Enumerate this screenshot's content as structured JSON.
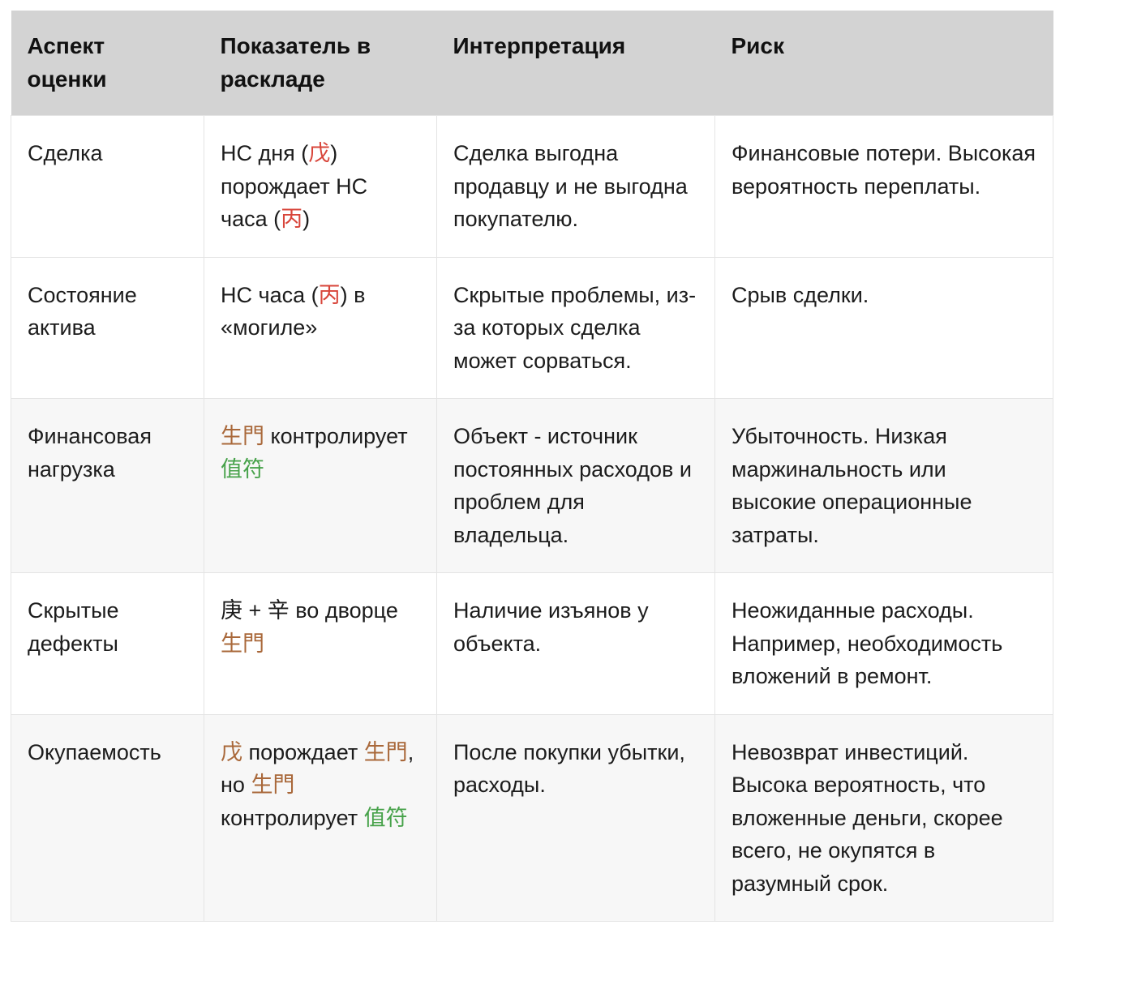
{
  "colors": {
    "red": "#d8453a",
    "brown": "#a9683a",
    "green": "#47a24a"
  },
  "table": {
    "headers": [
      "Аспект оценки",
      "Показатель в раскладе",
      "Интерпретация",
      "Риск"
    ],
    "rows": [
      {
        "aspect": "Сделка",
        "indicator": [
          {
            "t": "НС дня ("
          },
          {
            "t": "戊",
            "c": "red"
          },
          {
            "t": ") порождает НС часа ("
          },
          {
            "t": "丙",
            "c": "red"
          },
          {
            "t": ")"
          }
        ],
        "interpretation": "Сделка выгодна продавцу и не выгодна покупателю.",
        "risk": "Финансовые потери. Высокая вероятность переплаты."
      },
      {
        "aspect": "Состояние актива",
        "indicator": [
          {
            "t": "НС часа ("
          },
          {
            "t": "丙",
            "c": "red"
          },
          {
            "t": ") в «могиле»"
          }
        ],
        "interpretation": "Скрытые проблемы, из-за которых сделка может сорваться.",
        "risk": "Срыв сделки."
      },
      {
        "aspect": "Финансовая нагрузка",
        "indicator": [
          {
            "t": "生門",
            "c": "brown"
          },
          {
            "t": " контролирует "
          },
          {
            "t": "值符",
            "c": "green"
          }
        ],
        "interpretation": "Объект - источник постоянных расходов и проблем для владельца.",
        "risk": "Убыточность. Низкая маржинальность или высокие операционные затраты."
      },
      {
        "aspect": "Скрытые дефекты",
        "indicator": [
          {
            "t": "庚 + 辛 во дворце "
          },
          {
            "t": "生門",
            "c": "brown"
          }
        ],
        "interpretation": "Наличие изъянов у объекта.",
        "risk": "Неожиданные расходы. Например, необходимость вложений в ремонт."
      },
      {
        "aspect": "Окупаемость",
        "indicator": [
          {
            "t": "戊",
            "c": "brown"
          },
          {
            "t": " порождает "
          },
          {
            "t": "生門",
            "c": "brown"
          },
          {
            "t": ", но "
          },
          {
            "t": "生門",
            "c": "brown"
          },
          {
            "t": " контролирует "
          },
          {
            "t": "值符",
            "c": "green"
          }
        ],
        "interpretation": "После покупки убытки, расходы.",
        "risk": "Невозврат инвестиций. Высока вероятность, что вложенные деньги, скорее всего, не окупятся в разумный срок."
      }
    ]
  }
}
